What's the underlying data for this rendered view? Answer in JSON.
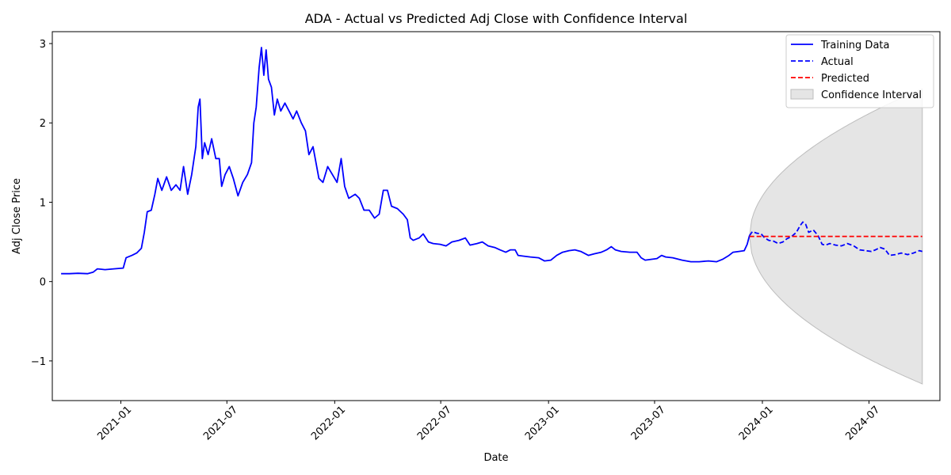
{
  "chart_data": {
    "type": "line",
    "title": "ADA - Actual vs Predicted Adj Close with Confidence Interval",
    "xlabel": "Date",
    "ylabel": "Adj Close Price",
    "xlim": [
      "2020-09-06",
      "2024-10-30"
    ],
    "ylim": [
      -1.5,
      3.15
    ],
    "x_ticks": [
      "2021-01",
      "2021-07",
      "2022-01",
      "2022-07",
      "2023-01",
      "2023-07",
      "2024-01",
      "2024-07"
    ],
    "x_tick_dates": [
      "2021-01-01",
      "2021-07-01",
      "2022-01-01",
      "2022-07-01",
      "2023-01-01",
      "2023-07-01",
      "2024-01-01",
      "2024-07-01"
    ],
    "y_ticks": [
      -1,
      0,
      1,
      2,
      3
    ],
    "y_tick_labels": [
      "−1",
      "0",
      "1",
      "2",
      "3"
    ],
    "grid": false,
    "legend_position": "top-right",
    "series": [
      {
        "name": "Training Data",
        "style": "solid",
        "color": "#0000ff",
        "points": [
          [
            "2020-09-21",
            0.1
          ],
          [
            "2020-10-05",
            0.1
          ],
          [
            "2020-10-20",
            0.105
          ],
          [
            "2020-11-05",
            0.1
          ],
          [
            "2020-11-15",
            0.12
          ],
          [
            "2020-11-22",
            0.16
          ],
          [
            "2020-12-05",
            0.15
          ],
          [
            "2020-12-20",
            0.16
          ],
          [
            "2021-01-05",
            0.17
          ],
          [
            "2021-01-10",
            0.3
          ],
          [
            "2021-01-20",
            0.33
          ],
          [
            "2021-01-28",
            0.36
          ],
          [
            "2021-02-05",
            0.42
          ],
          [
            "2021-02-10",
            0.62
          ],
          [
            "2021-02-15",
            0.88
          ],
          [
            "2021-02-22",
            0.9
          ],
          [
            "2021-02-28",
            1.1
          ],
          [
            "2021-03-05",
            1.3
          ],
          [
            "2021-03-12",
            1.15
          ],
          [
            "2021-03-20",
            1.32
          ],
          [
            "2021-03-28",
            1.15
          ],
          [
            "2021-04-05",
            1.22
          ],
          [
            "2021-04-12",
            1.15
          ],
          [
            "2021-04-18",
            1.45
          ],
          [
            "2021-04-25",
            1.1
          ],
          [
            "2021-05-02",
            1.35
          ],
          [
            "2021-05-09",
            1.7
          ],
          [
            "2021-05-13",
            2.2
          ],
          [
            "2021-05-16",
            2.3
          ],
          [
            "2021-05-20",
            1.55
          ],
          [
            "2021-05-24",
            1.75
          ],
          [
            "2021-05-30",
            1.6
          ],
          [
            "2021-06-05",
            1.8
          ],
          [
            "2021-06-12",
            1.55
          ],
          [
            "2021-06-18",
            1.55
          ],
          [
            "2021-06-22",
            1.2
          ],
          [
            "2021-06-28",
            1.35
          ],
          [
            "2021-07-05",
            1.45
          ],
          [
            "2021-07-12",
            1.3
          ],
          [
            "2021-07-20",
            1.08
          ],
          [
            "2021-07-28",
            1.25
          ],
          [
            "2021-08-05",
            1.35
          ],
          [
            "2021-08-12",
            1.5
          ],
          [
            "2021-08-16",
            2.0
          ],
          [
            "2021-08-20",
            2.2
          ],
          [
            "2021-08-25",
            2.7
          ],
          [
            "2021-08-29",
            2.95
          ],
          [
            "2021-09-02",
            2.6
          ],
          [
            "2021-09-06",
            2.92
          ],
          [
            "2021-09-10",
            2.55
          ],
          [
            "2021-09-15",
            2.45
          ],
          [
            "2021-09-20",
            2.1
          ],
          [
            "2021-09-25",
            2.3
          ],
          [
            "2021-10-01",
            2.15
          ],
          [
            "2021-10-08",
            2.25
          ],
          [
            "2021-10-15",
            2.15
          ],
          [
            "2021-10-22",
            2.05
          ],
          [
            "2021-10-28",
            2.15
          ],
          [
            "2021-11-05",
            2.0
          ],
          [
            "2021-11-12",
            1.9
          ],
          [
            "2021-11-18",
            1.6
          ],
          [
            "2021-11-25",
            1.7
          ],
          [
            "2021-12-05",
            1.3
          ],
          [
            "2021-12-12",
            1.25
          ],
          [
            "2021-12-20",
            1.45
          ],
          [
            "2021-12-28",
            1.35
          ],
          [
            "2022-01-05",
            1.25
          ],
          [
            "2022-01-12",
            1.55
          ],
          [
            "2022-01-18",
            1.2
          ],
          [
            "2022-01-25",
            1.05
          ],
          [
            "2022-02-05",
            1.1
          ],
          [
            "2022-02-12",
            1.05
          ],
          [
            "2022-02-20",
            0.9
          ],
          [
            "2022-03-01",
            0.9
          ],
          [
            "2022-03-10",
            0.8
          ],
          [
            "2022-03-18",
            0.85
          ],
          [
            "2022-03-25",
            1.15
          ],
          [
            "2022-04-01",
            1.15
          ],
          [
            "2022-04-08",
            0.95
          ],
          [
            "2022-04-18",
            0.92
          ],
          [
            "2022-04-28",
            0.85
          ],
          [
            "2022-05-05",
            0.78
          ],
          [
            "2022-05-10",
            0.55
          ],
          [
            "2022-05-15",
            0.52
          ],
          [
            "2022-05-25",
            0.55
          ],
          [
            "2022-06-01",
            0.6
          ],
          [
            "2022-06-10",
            0.5
          ],
          [
            "2022-06-18",
            0.48
          ],
          [
            "2022-06-30",
            0.47
          ],
          [
            "2022-07-10",
            0.45
          ],
          [
            "2022-07-20",
            0.5
          ],
          [
            "2022-08-01",
            0.52
          ],
          [
            "2022-08-12",
            0.55
          ],
          [
            "2022-08-20",
            0.46
          ],
          [
            "2022-09-01",
            0.48
          ],
          [
            "2022-09-10",
            0.5
          ],
          [
            "2022-09-20",
            0.45
          ],
          [
            "2022-10-01",
            0.43
          ],
          [
            "2022-10-10",
            0.4
          ],
          [
            "2022-10-20",
            0.37
          ],
          [
            "2022-10-28",
            0.4
          ],
          [
            "2022-11-05",
            0.4
          ],
          [
            "2022-11-10",
            0.33
          ],
          [
            "2022-11-20",
            0.32
          ],
          [
            "2022-12-01",
            0.31
          ],
          [
            "2022-12-15",
            0.3
          ],
          [
            "2022-12-25",
            0.26
          ],
          [
            "2023-01-05",
            0.27
          ],
          [
            "2023-01-15",
            0.33
          ],
          [
            "2023-01-25",
            0.37
          ],
          [
            "2023-02-05",
            0.39
          ],
          [
            "2023-02-15",
            0.4
          ],
          [
            "2023-02-25",
            0.38
          ],
          [
            "2023-03-10",
            0.33
          ],
          [
            "2023-03-20",
            0.35
          ],
          [
            "2023-04-01",
            0.37
          ],
          [
            "2023-04-10",
            0.4
          ],
          [
            "2023-04-18",
            0.44
          ],
          [
            "2023-04-25",
            0.4
          ],
          [
            "2023-05-05",
            0.38
          ],
          [
            "2023-05-20",
            0.37
          ],
          [
            "2023-06-01",
            0.37
          ],
          [
            "2023-06-08",
            0.3
          ],
          [
            "2023-06-15",
            0.27
          ],
          [
            "2023-06-25",
            0.28
          ],
          [
            "2023-07-05",
            0.29
          ],
          [
            "2023-07-13",
            0.33
          ],
          [
            "2023-07-20",
            0.31
          ],
          [
            "2023-08-01",
            0.3
          ],
          [
            "2023-08-17",
            0.27
          ],
          [
            "2023-09-01",
            0.25
          ],
          [
            "2023-09-15",
            0.25
          ],
          [
            "2023-10-01",
            0.26
          ],
          [
            "2023-10-15",
            0.25
          ],
          [
            "2023-10-25",
            0.28
          ],
          [
            "2023-11-05",
            0.33
          ],
          [
            "2023-11-12",
            0.37
          ],
          [
            "2023-11-22",
            0.38
          ],
          [
            "2023-12-01",
            0.39
          ],
          [
            "2023-12-06",
            0.47
          ],
          [
            "2023-12-10",
            0.58
          ]
        ]
      },
      {
        "name": "Actual",
        "style": "dashed",
        "color": "#0000ff",
        "points": [
          [
            "2023-12-10",
            0.58
          ],
          [
            "2023-12-15",
            0.63
          ],
          [
            "2023-12-22",
            0.61
          ],
          [
            "2023-12-30",
            0.6
          ],
          [
            "2024-01-05",
            0.55
          ],
          [
            "2024-01-12",
            0.52
          ],
          [
            "2024-01-20",
            0.51
          ],
          [
            "2024-01-28",
            0.48
          ],
          [
            "2024-02-05",
            0.5
          ],
          [
            "2024-02-12",
            0.54
          ],
          [
            "2024-02-20",
            0.57
          ],
          [
            "2024-02-28",
            0.62
          ],
          [
            "2024-03-05",
            0.7
          ],
          [
            "2024-03-10",
            0.75
          ],
          [
            "2024-03-15",
            0.72
          ],
          [
            "2024-03-20",
            0.62
          ],
          [
            "2024-03-28",
            0.65
          ],
          [
            "2024-04-05",
            0.58
          ],
          [
            "2024-04-12",
            0.47
          ],
          [
            "2024-04-18",
            0.46
          ],
          [
            "2024-04-25",
            0.48
          ],
          [
            "2024-05-05",
            0.46
          ],
          [
            "2024-05-15",
            0.45
          ],
          [
            "2024-05-25",
            0.48
          ],
          [
            "2024-06-05",
            0.45
          ],
          [
            "2024-06-15",
            0.4
          ],
          [
            "2024-06-25",
            0.39
          ],
          [
            "2024-07-05",
            0.38
          ],
          [
            "2024-07-12",
            0.4
          ],
          [
            "2024-07-20",
            0.43
          ],
          [
            "2024-07-28",
            0.41
          ],
          [
            "2024-08-05",
            0.33
          ],
          [
            "2024-08-15",
            0.34
          ],
          [
            "2024-08-25",
            0.36
          ],
          [
            "2024-09-05",
            0.34
          ],
          [
            "2024-09-15",
            0.36
          ],
          [
            "2024-09-25",
            0.39
          ],
          [
            "2024-09-30",
            0.38
          ]
        ]
      },
      {
        "name": "Predicted",
        "style": "dashed",
        "color": "#ff0000",
        "points": [
          [
            "2023-12-10",
            0.57
          ],
          [
            "2024-09-30",
            0.57
          ]
        ]
      }
    ],
    "confidence_interval": {
      "name": "Confidence Interval",
      "color": "#d3d3d3",
      "center": 0.57,
      "start": "2023-12-10",
      "end": "2024-09-30",
      "upper_end": 2.43,
      "lower_end": -1.29
    }
  }
}
